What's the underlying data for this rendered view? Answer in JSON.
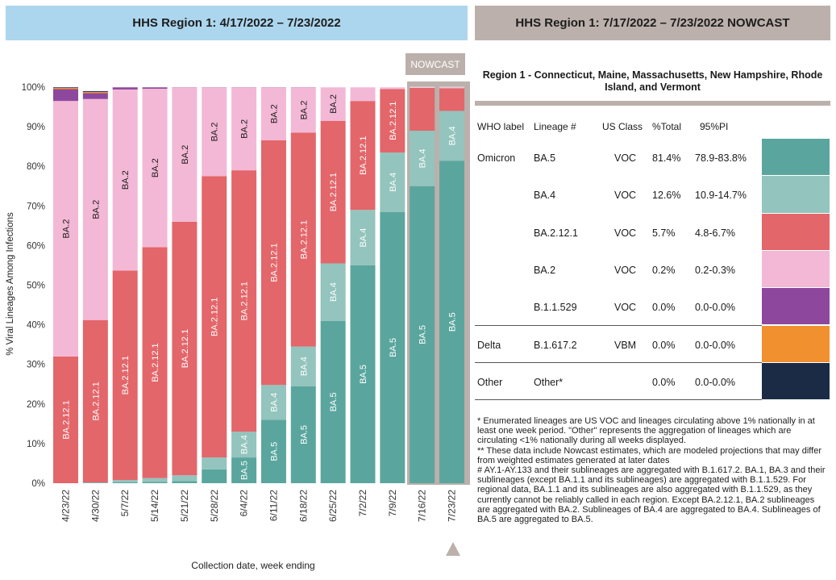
{
  "left_header": "HHS Region 1: 4/17/2022 – 7/23/2022",
  "right_header": "HHS Region 1: 7/17/2022 – 7/23/2022 NOWCAST",
  "nowcast_label": "NOWCAST",
  "region_title": "Region 1 - Connecticut, Maine, Massachusetts, New Hampshire, Rhode Island, and Vermont",
  "colors": {
    "BA.5": "#5aa69e",
    "BA.4": "#93c4bd",
    "BA.2.12.1": "#e3666a",
    "BA.2": "#f3b8d6",
    "B.1.1.529": "#8d489e",
    "B.1.617.2": "#f0902f",
    "Other": "#1b2b45"
  },
  "chart_data": {
    "type": "bar",
    "stacked": true,
    "ylabel": "% Viral Lineages Among Infections",
    "xlabel": "Collection date, week ending",
    "ylim": [
      0,
      100
    ],
    "yticks": [
      "0%",
      "10%",
      "20%",
      "30%",
      "40%",
      "50%",
      "60%",
      "70%",
      "80%",
      "90%",
      "100%"
    ],
    "grid": false,
    "categories": [
      "4/23/22",
      "4/30/22",
      "5/7/22",
      "5/14/22",
      "5/21/22",
      "5/28/22",
      "6/4/22",
      "6/11/22",
      "6/18/22",
      "6/25/22",
      "7/2/22",
      "7/9/22",
      "7/16/22",
      "7/23/22"
    ],
    "nowcast_categories": [
      "7/16/22",
      "7/23/22"
    ],
    "series": [
      {
        "name": "BA.5",
        "values": [
          0.0,
          0.1,
          0.2,
          0.3,
          0.5,
          3.5,
          6.5,
          16.0,
          24.5,
          41.0,
          55.0,
          68.5,
          75.0,
          81.4
        ]
      },
      {
        "name": "BA.4",
        "values": [
          0.0,
          0.1,
          0.6,
          1.0,
          1.5,
          3.0,
          6.5,
          8.8,
          10.0,
          14.5,
          14.0,
          15.0,
          14.0,
          12.6
        ]
      },
      {
        "name": "BA.2.12.1",
        "values": [
          32.0,
          41.0,
          52.9,
          58.3,
          64.0,
          71.0,
          66.0,
          61.8,
          54.0,
          36.0,
          27.5,
          16.0,
          10.8,
          5.7
        ]
      },
      {
        "name": "BA.2",
        "values": [
          64.5,
          55.8,
          45.7,
          40.0,
          33.9,
          22.4,
          20.9,
          13.3,
          11.4,
          8.5,
          3.5,
          0.5,
          0.2,
          0.2
        ]
      },
      {
        "name": "B.1.1.529",
        "values": [
          3.0,
          1.5,
          0.6,
          0.4,
          0.1,
          0.1,
          0.1,
          0.1,
          0.1,
          0.0,
          0.0,
          0.0,
          0.0,
          0.0
        ]
      },
      {
        "name": "B.1.617.2",
        "values": [
          0.3,
          0.3,
          0.0,
          0.0,
          0.0,
          0.0,
          0.0,
          0.0,
          0.0,
          0.0,
          0.0,
          0.0,
          0.0,
          0.0
        ]
      },
      {
        "name": "Other",
        "values": [
          0.2,
          0.2,
          0.0,
          0.0,
          0.0,
          0.0,
          0.0,
          0.0,
          0.0,
          0.0,
          0.0,
          0.0,
          0.0,
          0.0
        ]
      }
    ],
    "segment_labels": [
      {
        "bar": 0,
        "series": "BA.2.12.1",
        "text": "BA.2.12.1"
      },
      {
        "bar": 0,
        "series": "BA.2",
        "text": "BA.2"
      },
      {
        "bar": 1,
        "series": "BA.2.12.1",
        "text": "BA.2.12.1"
      },
      {
        "bar": 1,
        "series": "BA.2",
        "text": "BA.2"
      },
      {
        "bar": 2,
        "series": "BA.2.12.1",
        "text": "BA.2.12.1"
      },
      {
        "bar": 2,
        "series": "BA.2",
        "text": "BA.2"
      },
      {
        "bar": 3,
        "series": "BA.2.12.1",
        "text": "BA.2.12.1"
      },
      {
        "bar": 3,
        "series": "BA.2",
        "text": "BA.2"
      },
      {
        "bar": 4,
        "series": "BA.2.12.1",
        "text": "BA.2.12.1"
      },
      {
        "bar": 4,
        "series": "BA.2",
        "text": "BA.2"
      },
      {
        "bar": 5,
        "series": "BA.2.12.1",
        "text": "BA.2.12.1"
      },
      {
        "bar": 5,
        "series": "BA.2",
        "text": "BA.2"
      },
      {
        "bar": 6,
        "series": "BA.5",
        "text": "BA.5"
      },
      {
        "bar": 6,
        "series": "BA.4",
        "text": "BA.4"
      },
      {
        "bar": 6,
        "series": "BA.2.12.1",
        "text": "BA.2.12.1"
      },
      {
        "bar": 6,
        "series": "BA.2",
        "text": "BA.2"
      },
      {
        "bar": 7,
        "series": "BA.5",
        "text": "BA.5"
      },
      {
        "bar": 7,
        "series": "BA.4",
        "text": "BA.4"
      },
      {
        "bar": 7,
        "series": "BA.2.12.1",
        "text": "BA.2.12.1"
      },
      {
        "bar": 7,
        "series": "BA.2",
        "text": "BA.2"
      },
      {
        "bar": 8,
        "series": "BA.5",
        "text": "BA.5"
      },
      {
        "bar": 8,
        "series": "BA.4",
        "text": "BA.4"
      },
      {
        "bar": 8,
        "series": "BA.2.12.1",
        "text": "BA.2.12.1"
      },
      {
        "bar": 8,
        "series": "BA.2",
        "text": "BA.2"
      },
      {
        "bar": 9,
        "series": "BA.5",
        "text": "BA.5"
      },
      {
        "bar": 9,
        "series": "BA.4",
        "text": "BA.4"
      },
      {
        "bar": 9,
        "series": "BA.2.12.1",
        "text": "BA.2.12.1"
      },
      {
        "bar": 9,
        "series": "BA.2",
        "text": "BA.2"
      },
      {
        "bar": 10,
        "series": "BA.5",
        "text": "BA.5"
      },
      {
        "bar": 10,
        "series": "BA.4",
        "text": "BA.4"
      },
      {
        "bar": 10,
        "series": "BA.2.12.1",
        "text": "BA.2.12.1"
      },
      {
        "bar": 11,
        "series": "BA.5",
        "text": "BA.5"
      },
      {
        "bar": 11,
        "series": "BA.4",
        "text": "BA.4"
      },
      {
        "bar": 11,
        "series": "BA.2.12.1",
        "text": "BA.2.12.1"
      },
      {
        "bar": 12,
        "series": "BA.5",
        "text": "BA.5"
      },
      {
        "bar": 12,
        "series": "BA.4",
        "text": "BA.4"
      },
      {
        "bar": 13,
        "series": "BA.5",
        "text": "BA.5"
      },
      {
        "bar": 13,
        "series": "BA.4",
        "text": "BA.4"
      }
    ]
  },
  "table": {
    "headers": [
      "WHO label",
      "Lineage #",
      "US Class",
      "%Total",
      "95%PI"
    ],
    "rows": [
      {
        "who": "Omicron",
        "lineage": "BA.5",
        "class": "VOC",
        "total": "81.4%",
        "pi": "78.9-83.8%",
        "color_key": "BA.5"
      },
      {
        "who": "",
        "lineage": "BA.4",
        "class": "VOC",
        "total": "12.6%",
        "pi": "10.9-14.7%",
        "color_key": "BA.4"
      },
      {
        "who": "",
        "lineage": "BA.2.12.1",
        "class": "VOC",
        "total": "5.7%",
        "pi": "4.8-6.7%",
        "color_key": "BA.2.12.1"
      },
      {
        "who": "",
        "lineage": "BA.2",
        "class": "VOC",
        "total": "0.2%",
        "pi": "0.2-0.3%",
        "color_key": "BA.2"
      },
      {
        "who": "",
        "lineage": "B.1.1.529",
        "class": "VOC",
        "total": "0.0%",
        "pi": "0.0-0.0%",
        "color_key": "B.1.1.529"
      },
      {
        "who": "Delta",
        "lineage": "B.1.617.2",
        "class": "VBM",
        "total": "0.0%",
        "pi": "0.0-0.0%",
        "color_key": "B.1.617.2"
      },
      {
        "who": "Other",
        "lineage": "Other*",
        "class": "",
        "total": "0.0%",
        "pi": "0.0-0.0%",
        "color_key": "Other"
      }
    ]
  },
  "footnotes": [
    "*      Enumerated lineages are US VOC and lineages circulating above 1% nationally in at least one week period. \"Other\" represents the aggregation of lineages which are circulating <1% nationally during all weeks displayed.",
    "**      These data include Nowcast estimates, which are modeled projections that may differ from weighted estimates generated at later dates",
    "#      AY.1-AY.133 and their sublineages are aggregated with B.1.617.2. BA.1, BA.3 and their sublineages (except BA.1.1 and its sublineages) are aggregated with B.1.1.529. For regional data, BA.1.1 and its sublineages are also aggregated with B.1.1.529, as they currently cannot be reliably called in each region. Except BA.2.12.1, BA.2 sublineages are aggregated with BA.2. Sublineages of BA.4 are aggregated to BA.4. Sublineages of BA.5 are aggregated to BA.5."
  ]
}
